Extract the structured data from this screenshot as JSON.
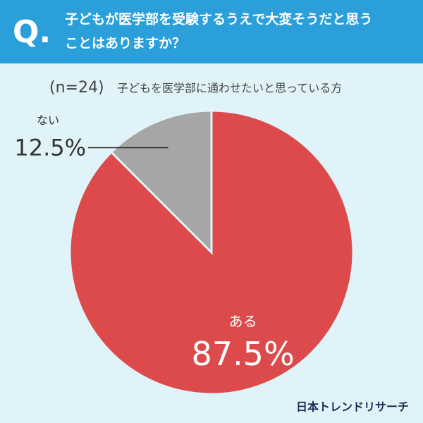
{
  "chart_data": {
    "type": "pie",
    "badge": "Q.",
    "title": [
      "子どもが医学部を受験するうえで大変そうだと思う",
      "ことはありますか？"
    ],
    "sample": "(n=24)",
    "subtitle": "子どもを医学部に通わせたいと思っている方",
    "categories": [
      "ある",
      "ない"
    ],
    "values": [
      87.5,
      12.5
    ],
    "value_labels": [
      "87.5%",
      "12.5%"
    ],
    "colors": [
      "#dd4a4b",
      "#a6a6a6"
    ],
    "source": "日本トレンドリサーチ"
  }
}
